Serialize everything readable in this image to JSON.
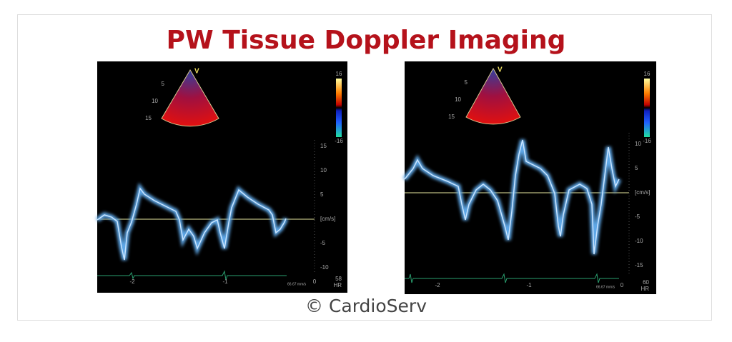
{
  "title": "PW Tissue Doppler Imaging",
  "caption": "© CardioServ",
  "panels": [
    {
      "sector_label": "V",
      "depth_labels": [
        "5",
        "10",
        "15"
      ],
      "colorbar_labels": [
        "16",
        "-16"
      ],
      "scale_labels": [
        "15",
        "10",
        "5",
        "[cm/s]",
        "-5",
        "-10"
      ],
      "time_labels": [
        "-2",
        "-1",
        "0"
      ],
      "speed": "66.67 mm/s",
      "hr_value": "58",
      "hr_label": "HR"
    },
    {
      "sector_label": "V",
      "depth_labels": [
        "5",
        "10",
        "15"
      ],
      "colorbar_labels": [
        "16",
        "-16"
      ],
      "scale_labels": [
        "10",
        "5",
        "[cm/s]",
        "-5",
        "-10",
        "-15"
      ],
      "time_labels": [
        "-2",
        "-1",
        "0"
      ],
      "speed": "66.67 mm/s",
      "hr_value": "60",
      "hr_label": "HR"
    }
  ]
}
